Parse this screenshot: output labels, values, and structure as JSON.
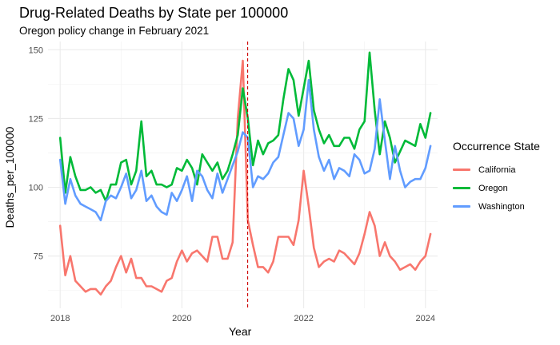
{
  "chart_data": {
    "type": "line",
    "title": "Drug-Related Deaths by State per 100000",
    "subtitle": "Oregon policy change in February 2021",
    "xlabel": "Year",
    "ylabel": "Deaths_per_100000",
    "xlim": [
      2017.8,
      2024.2
    ],
    "ylim": [
      56,
      153
    ],
    "x_ticks": [
      2018,
      2020,
      2022,
      2024
    ],
    "y_ticks": [
      75,
      100,
      125,
      150
    ],
    "grid": true,
    "legend_title": "Occurrence State",
    "legend_position": "right",
    "policy_line": {
      "x": 2021.08,
      "color": "#cc0000",
      "style": "dashed"
    },
    "x_start": 2018.0,
    "x_step_months": 1,
    "series": [
      {
        "name": "California",
        "color": "#F8766D",
        "values": [
          86,
          68,
          75,
          66,
          64,
          62,
          63,
          63,
          61,
          64,
          66,
          71,
          75,
          69,
          74,
          67,
          67,
          64,
          64,
          63,
          62,
          66,
          67,
          73,
          77,
          73,
          76,
          77,
          75,
          73,
          82,
          82,
          74,
          74,
          80,
          125,
          146,
          88,
          79,
          71,
          71,
          69,
          73,
          82,
          82,
          82,
          79,
          88,
          106,
          93,
          78,
          71,
          73,
          74,
          73,
          77,
          76,
          74,
          72,
          76,
          83,
          91,
          86,
          75,
          80,
          75,
          73,
          70,
          71,
          72,
          70,
          73,
          75,
          83
        ]
      },
      {
        "name": "Oregon",
        "color": "#00BA38",
        "values": [
          118,
          98,
          111,
          104,
          99,
          99,
          100,
          98,
          99,
          95,
          101,
          101,
          109,
          110,
          101,
          106,
          124,
          104,
          106,
          101,
          101,
          100,
          101,
          107,
          106,
          110,
          107,
          101,
          112,
          109,
          106,
          109,
          103,
          106,
          112,
          119,
          136,
          125,
          108,
          117,
          112,
          116,
          117,
          119,
          132,
          143,
          139,
          126,
          136,
          146,
          128,
          121,
          116,
          119,
          115,
          115,
          118,
          118,
          114,
          121,
          124,
          149,
          128,
          112,
          124,
          118,
          109,
          113,
          117,
          116,
          115,
          123,
          118,
          127
        ]
      },
      {
        "name": "Washington",
        "color": "#619CFF",
        "values": [
          110,
          94,
          103,
          97,
          94,
          93,
          92,
          91,
          88,
          95,
          97,
          96,
          100,
          105,
          96,
          99,
          106,
          95,
          97,
          93,
          91,
          90,
          98,
          95,
          99,
          104,
          95,
          106,
          104,
          99,
          96,
          105,
          98,
          103,
          108,
          113,
          120,
          118,
          100,
          104,
          103,
          105,
          109,
          111,
          119,
          127,
          125,
          115,
          121,
          139,
          121,
          111,
          106,
          110,
          103,
          107,
          106,
          104,
          112,
          110,
          105,
          106,
          114,
          132,
          117,
          103,
          115,
          106,
          100,
          102,
          103,
          103,
          107,
          115
        ]
      }
    ]
  }
}
